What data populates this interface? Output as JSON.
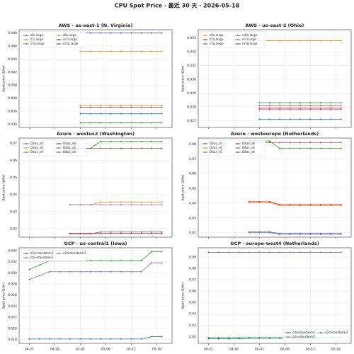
{
  "title": "CPU Spot Price · 最近 30 天 · 2026-05-18",
  "chart_data": [
    {
      "type": "line",
      "title": "AWS · us-east-1 (N. Virginia)",
      "y_label": "Spot price ($/hr)",
      "legend": "upper left",
      "grid": true,
      "xlim": [
        "04-19",
        "05-19"
      ],
      "ylim": [
        0.0335,
        0.0485
      ],
      "yticks": [
        0.034,
        0.036,
        0.038,
        {
          "value": 0.04,
          "label": "0.040"
        },
        0.042,
        0.044,
        0.046,
        0.048
      ],
      "x": [
        "05-01",
        "05-03",
        "05-05",
        "05-07",
        "05-09",
        "05-11",
        "05-13",
        "05-15",
        "05-17"
      ],
      "series": [
        {
          "name": "c6i.large",
          "color": "#1f77b4",
          "values": [
            0.0356,
            0.0356,
            0.0356,
            0.0356,
            0.0356,
            0.0356,
            0.0356,
            0.0356,
            0.0356
          ]
        },
        {
          "name": "c7i.large",
          "color": "#ff7f0e",
          "values": [
            0.0369,
            0.0369,
            0.0369,
            0.0369,
            0.0369,
            0.0369,
            0.0369,
            0.0369,
            0.0369
          ]
        },
        {
          "name": "c7g.large",
          "color": "#2ca02c",
          "values": [
            0.0342,
            0.0342,
            0.0342,
            0.0342,
            0.0342,
            0.0342,
            0.0342,
            0.0342,
            0.0342
          ]
        },
        {
          "name": "r6a.large",
          "color": "#ff7f0e",
          "values": [
            0.0452,
            0.0452,
            0.0452,
            0.0452,
            0.0452,
            0.0452,
            0.0452,
            0.0452,
            0.0452
          ]
        },
        {
          "name": "m7i.large",
          "color": "#1f5f9f",
          "values": [
            0.048,
            0.048,
            0.048,
            0.048,
            0.048,
            0.048,
            0.048,
            0.048,
            0.048
          ]
        },
        {
          "name": "m7g.large",
          "color": "#8c564b",
          "values": [
            0.0366,
            0.0366,
            0.0366,
            0.0366,
            0.0366,
            0.0366,
            0.0366,
            0.0366,
            0.0366
          ]
        }
      ]
    },
    {
      "type": "line",
      "title": "AWS · us-east-2 (Ohio)",
      "y_label": "Spot price ($/hr)",
      "legend": "upper left",
      "grid": true,
      "xlim": [
        "04-19",
        "05-19"
      ],
      "ylim": [
        0.0265,
        0.0336
      ],
      "yticks": [
        0.027,
        0.028,
        0.029,
        {
          "value": 0.03,
          "label": "0.030"
        },
        0.031,
        0.032,
        0.033
      ],
      "x": [
        "05-01",
        "05-03",
        "05-05",
        "05-07",
        "05-09",
        "05-11",
        "05-13",
        "05-15",
        "05-17"
      ],
      "series": [
        {
          "name": "c6a.large",
          "color": "#ff7f0e",
          "values": [
            0.0328,
            0.0328,
            0.0328,
            0.0328,
            0.0328,
            0.0328,
            0.0328,
            0.0328,
            0.0328
          ]
        },
        {
          "name": "c7a.large",
          "color": "#d62728",
          "values": [
            0.0279,
            0.0279,
            0.0279,
            0.0279,
            0.0279,
            0.0279,
            0.0279,
            0.0279,
            0.0279
          ]
        },
        {
          "name": "c7g.large",
          "color": "#2ca02c",
          "values": [
            0.0283,
            0.0283,
            0.0283,
            0.0283,
            0.0283,
            0.0283,
            0.0283,
            0.0283,
            0.0283
          ]
        },
        {
          "name": "m6a.large",
          "color": "#1f77b4",
          "values": [
            0.0271,
            0.0271,
            0.0271,
            0.0271,
            0.0271,
            0.0271,
            0.0271,
            0.0271,
            0.0271
          ]
        },
        {
          "name": "m7i.large",
          "color": "#9467bd",
          "values": [
            0.0278,
            0.0278,
            0.0278,
            0.0278,
            0.0278,
            0.0278,
            0.0278,
            0.0278,
            0.0278
          ]
        },
        {
          "name": "m7g.large",
          "color": "#8c564b",
          "values": [
            0.0281,
            0.0281,
            0.0281,
            0.0281,
            0.0281,
            0.0281,
            0.0281,
            0.0281,
            0.0281
          ]
        }
      ]
    },
    {
      "type": "line",
      "title": "Azure · westus2 (Washington)",
      "y_label": "Spot price ($/hr)",
      "legend": "upper left",
      "grid": true,
      "xlim": [
        "04-19",
        "05-19"
      ],
      "ylim": [
        0.015,
        0.073
      ],
      "yticks": [
        0.02,
        0.03,
        0.04,
        0.05,
        0.06,
        0.07
      ],
      "x": [
        "04-29",
        "05-01",
        "05-03",
        "05-05",
        "05-07",
        "05-09",
        "05-11",
        "05-13",
        "05-15",
        "05-17"
      ],
      "series": [
        {
          "name": "D2as_v5",
          "color": "#1f77b4",
          "values": [
            0.017,
            0.017,
            0.017,
            0.018,
            0.018,
            0.018,
            0.018,
            0.018,
            0.018,
            0.018
          ]
        },
        {
          "name": "D2as_v6",
          "color": "#ff7f0e",
          "values": [
            0.034,
            0.034,
            0.034,
            0.0355,
            0.0355,
            0.0355,
            0.0355,
            0.0355,
            0.0355,
            0.0355
          ]
        },
        {
          "name": "D4as_v5",
          "color": "#2ca02c",
          "values": [
            0.067,
            0.067,
            0.067,
            0.071,
            0.071,
            0.071,
            0.071,
            0.071,
            0.071,
            0.071
          ]
        },
        {
          "name": "D4as_v6",
          "color": "#d62728",
          "values": [
            0.0172,
            0.0172,
            0.0172,
            0.0172,
            0.0172,
            0.0172,
            0.0172,
            0.0172,
            0.0172,
            0.0172
          ]
        },
        {
          "name": "D8as_v5",
          "color": "#9467bd",
          "values": [
            0.034,
            0.034,
            0.034,
            0.034,
            0.034,
            0.034,
            0.034,
            0.034,
            0.034,
            0.034
          ]
        },
        {
          "name": "D8as_v6",
          "color": "#8c564b",
          "values": [
            0.067,
            0.067,
            0.067,
            0.067,
            0.067,
            0.067,
            0.067,
            0.067,
            0.067,
            0.067
          ]
        }
      ]
    },
    {
      "type": "line",
      "title": "Azure · westeurope (Netherlands)",
      "y_label": "Spot price ($/hr)",
      "legend": "upper left",
      "grid": true,
      "xlim": [
        "04-19",
        "05-19"
      ],
      "ylim": [
        0.017,
        0.084
      ],
      "yticks": [
        0.02,
        0.03,
        0.04,
        0.05,
        0.06,
        0.07,
        0.08
      ],
      "x": [
        "04-29",
        "05-01",
        "05-03",
        "05-05",
        "05-07",
        "05-09",
        "05-11",
        "05-13",
        "05-15",
        "05-17"
      ],
      "series": [
        {
          "name": "D2as_v5",
          "color": "#1f77b4",
          "values": [
            0.0205,
            0.0205,
            0.0205,
            0.0195,
            0.0195,
            0.0195,
            0.0195,
            0.0195,
            0.0195,
            0.0195
          ]
        },
        {
          "name": "D2as_v6",
          "color": "#ff7f0e",
          "values": [
            0.0405,
            0.0405,
            0.0405,
            0.0385,
            0.0385,
            0.0385,
            0.0385,
            0.0385,
            0.0385,
            0.0385
          ]
        },
        {
          "name": "D4as_v5",
          "color": "#2ca02c",
          "values": [
            0.082,
            0.082,
            0.082,
            0.077,
            0.077,
            0.077,
            0.077,
            0.077,
            0.077,
            0.077
          ]
        },
        {
          "name": "D4as_v6",
          "color": "#d62728",
          "values": [
            0.041,
            0.041,
            0.041,
            0.039,
            0.039,
            0.039,
            0.039,
            0.039,
            0.039,
            0.039
          ]
        },
        {
          "name": "D8as_v5",
          "color": "#9467bd",
          "values": [
            0.02,
            0.02,
            0.02,
            0.019,
            0.019,
            0.019,
            0.019,
            0.019,
            0.019,
            0.019
          ]
        },
        {
          "name": "D8as_v6",
          "color": "#8c564b",
          "values": [
            0.081,
            0.081,
            0.081,
            0.081,
            0.081,
            0.081,
            0.081,
            0.081,
            0.081,
            0.081
          ]
        }
      ]
    },
    {
      "type": "line",
      "title": "GCP · us-central1 (Iowa)",
      "y_label": "Spot price ($/hr)",
      "legend": "upper left",
      "grid": true,
      "xlim": [
        "04-19",
        "05-19"
      ],
      "ylim": [
        0.0173,
        0.0345
      ],
      "xticks": [
        "04-21",
        "04-26",
        "05-01",
        "05-06",
        "05-11",
        "05-16"
      ],
      "yticks": [
        0.018,
        {
          "value": 0.02,
          "label": "0.020"
        },
        0.022,
        0.024,
        0.026,
        0.028,
        {
          "value": 0.03,
          "label": "0.030"
        },
        0.032,
        0.034
      ],
      "x": [
        "04-21",
        "04-23",
        "04-25",
        "04-27",
        "04-29",
        "05-01",
        "05-03",
        "05-05",
        "05-07",
        "05-09",
        "05-11",
        "05-13",
        "05-15",
        "05-17"
      ],
      "series": [
        {
          "name": "c3d-standard-4",
          "color": "#1f77b4",
          "values": [
            0.0181,
            0.0181,
            0.0181,
            0.0181,
            0.0181,
            0.0181,
            0.0181,
            0.0181,
            0.0181,
            0.0181,
            0.0181,
            0.0181,
            0.0185,
            0.0185
          ]
        },
        {
          "name": "c4a-standard-2",
          "color": "#9467bd",
          "values": [
            0.0288,
            0.0295,
            0.0302,
            0.0302,
            0.0302,
            0.0302,
            0.0302,
            0.0302,
            0.0302,
            0.0302,
            0.0302,
            0.0302,
            0.0318,
            0.0318
          ]
        },
        {
          "name": "n2d-standard-2",
          "color": "#2ca02c",
          "values": [
            0.0306,
            0.0314,
            0.0322,
            0.0322,
            0.0322,
            0.0322,
            0.0322,
            0.0322,
            0.0322,
            0.0322,
            0.0322,
            0.0322,
            0.0338,
            0.0338
          ]
        }
      ]
    },
    {
      "type": "line",
      "title": "GCP · europe-west4 (Netherlands)",
      "y_label": "Spot price ($/hr)",
      "legend": "lower right",
      "grid": true,
      "xlim": [
        "04-19",
        "05-19"
      ],
      "ylim": [
        0.014,
        0.098
      ],
      "xticks": [
        "04-21",
        "04-26",
        "05-01",
        "05-06",
        "05-11",
        "05-16"
      ],
      "yticks": [
        0.02,
        0.03,
        0.04,
        0.05,
        0.06,
        0.07,
        0.08,
        0.09
      ],
      "x": [
        "04-21",
        "04-23",
        "04-25",
        "04-27",
        "04-29",
        "05-01",
        "05-03",
        "05-05",
        "05-07",
        "05-09",
        "05-11",
        "05-13",
        "05-15",
        "05-17"
      ],
      "series": [
        {
          "name": "c3d-standard-4",
          "color": "#1f77b4",
          "values": [
            0.018,
            0.018,
            0.018,
            0.018,
            0.0185,
            0.0185,
            0.0185,
            0.0185,
            0.0185,
            0.0185,
            0.0185,
            0.0185,
            0.0195,
            0.0195
          ]
        },
        {
          "name": "c4a-standard-2",
          "color": "#9467bd",
          "values": [
            0.094,
            0.094,
            0.094,
            0.094,
            0.094,
            0.094,
            0.094,
            0.094,
            0.094,
            0.094,
            0.094,
            0.094,
            0.094,
            0.094
          ]
        },
        {
          "name": "n2d-standard-2",
          "color": "#2ca02c",
          "values": [
            0.019,
            0.019,
            0.019,
            0.019,
            0.019,
            0.019,
            0.019,
            0.019,
            0.019,
            0.019,
            0.019,
            0.019,
            0.019,
            0.019
          ]
        }
      ]
    }
  ]
}
